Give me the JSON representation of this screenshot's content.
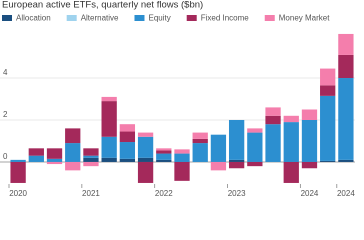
{
  "chart_data": {
    "type": "stacked_bar",
    "title": "European active ETFs, quarterly net flows ($bn)",
    "categories": [
      "2020",
      null,
      null,
      null,
      "2021",
      null,
      null,
      null,
      "2022",
      null,
      null,
      null,
      "2023",
      null,
      null,
      null,
      "2024",
      null,
      "2024"
    ],
    "series": [
      {
        "name": "Allocation",
        "color": "#1b4f80",
        "values": [
          0,
          0,
          0,
          0,
          0.2,
          0.2,
          0.15,
          0.2,
          0.1,
          0,
          0,
          0,
          0.1,
          0,
          0,
          0,
          0,
          0.05,
          0.1
        ]
      },
      {
        "name": "Alternative",
        "color": "#9fd3ee",
        "values": [
          0,
          0,
          0,
          0,
          0,
          0,
          0,
          0,
          0,
          0,
          0,
          0,
          0,
          0,
          0,
          0,
          0,
          0,
          0
        ]
      },
      {
        "name": "Equity",
        "color": "#2c8fd0",
        "values": [
          0.1,
          0.3,
          0.15,
          0.9,
          0.1,
          1.0,
          0.8,
          1.0,
          0.3,
          0.4,
          0.9,
          1.3,
          1.9,
          1.4,
          1.8,
          1.9,
          2.0,
          3.1,
          3.9
        ]
      },
      {
        "name": "Fixed Income",
        "color": "#a4295b",
        "values": [
          -1.0,
          0.35,
          0.5,
          0.7,
          0.35,
          1.7,
          0.5,
          -1.0,
          0.15,
          -0.9,
          0.2,
          0,
          -0.3,
          -0.2,
          0.4,
          -1.0,
          -0.3,
          0.5,
          1.1
        ]
      },
      {
        "name": "Money Market",
        "color": "#f47eac",
        "values": [
          0,
          0,
          -0.1,
          -0.4,
          -0.2,
          0.2,
          0.35,
          0.2,
          0.1,
          0.2,
          0.3,
          -0.4,
          0,
          0.2,
          0.4,
          0.3,
          0.5,
          0.8,
          1.0
        ]
      }
    ],
    "ylim": [
      -1.05,
      6.05
    ],
    "yticks": [
      0,
      2,
      4
    ],
    "grid": true
  }
}
